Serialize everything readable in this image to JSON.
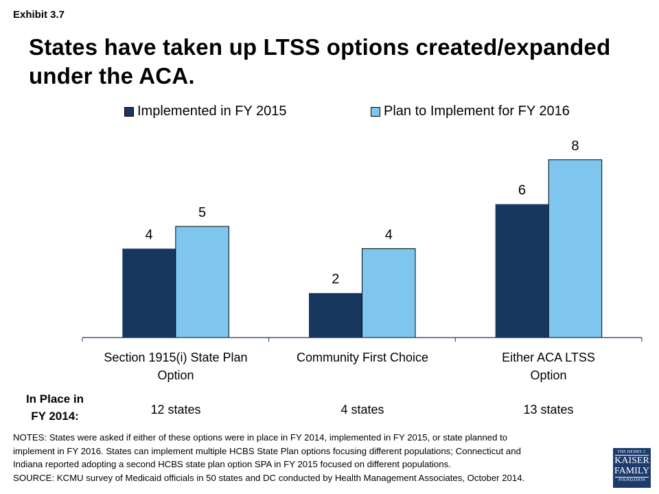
{
  "exhibit": "Exhibit 3.7",
  "title": "States have taken up LTSS options created/expanded under the ACA.",
  "colors": {
    "implemented": "#17375e",
    "planned": "#7ec6ee"
  },
  "chart_data": {
    "type": "bar",
    "title": "States have taken up LTSS options created/expanded under the ACA.",
    "xlabel": "",
    "ylabel": "",
    "ylim": [
      0,
      8.4
    ],
    "grid": false,
    "legend_position": "top",
    "categories": [
      "Section 1915(i) State Plan Option",
      "Community First Choice",
      "Either ACA LTSS Option"
    ],
    "category_lines": [
      [
        "Section 1915(i) State Plan",
        "Option"
      ],
      [
        "Community First Choice"
      ],
      [
        "Either ACA LTSS",
        "Option"
      ]
    ],
    "series": [
      {
        "name": "Implemented in FY 2015",
        "values": [
          4,
          2,
          6
        ]
      },
      {
        "name": "Plan to Implement for FY 2016",
        "values": [
          5,
          4,
          8
        ]
      }
    ],
    "data_labels": [
      [
        "4",
        "2",
        "6"
      ],
      [
        "5",
        "4",
        "8"
      ]
    ]
  },
  "in_place": {
    "label_line1": "In Place in",
    "label_line2": "FY 2014:",
    "values": [
      "12 states",
      "4 states",
      "13 states"
    ]
  },
  "notes": {
    "line1": "NOTES: States were asked if either of these options were in place in FY 2014, implemented in FY 2015, or state planned to",
    "line2": "implement in FY 2016. States can implement multiple HCBS State Plan options focusing different populations; Connecticut and",
    "line3": "Indiana reported adopting a second HCBS state plan option  SPA  in FY 2015 focused on different populations.",
    "source": "SOURCE: KCMU survey of Medicaid officials in 50 states and DC conducted by Health Management Associates, October 2014."
  },
  "logo": {
    "line1": "THE HENRY J.",
    "line2a": "KAISER",
    "line2b": "FAMILY",
    "line3": "FOUNDATION"
  }
}
